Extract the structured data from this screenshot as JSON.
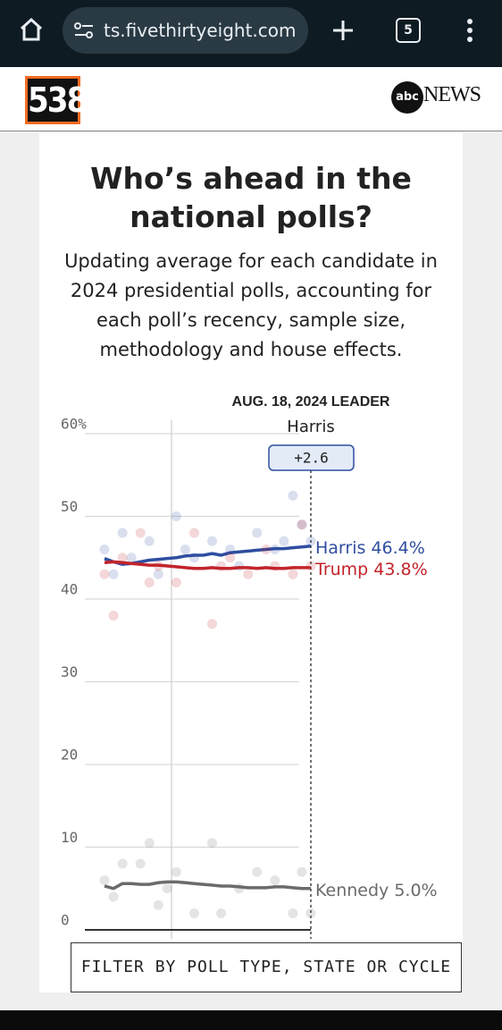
{
  "browser": {
    "url": "ts.fivethirtyeight.com",
    "tab_count": 5
  },
  "site": {
    "logo": "538",
    "partner_badge": "abc",
    "partner_name": "NEWS"
  },
  "chart_data": {
    "type": "line",
    "title": "Who’s ahead in the national polls?",
    "subtitle": "Updating average for each candidate in 2024 presidential polls, accounting for each poll’s recency, sample size, methodology and house effects.",
    "leader_heading": "AUG. 18, 2024 LEADER",
    "leader": "Harris",
    "leader_margin": 2.6,
    "leader_margin_label": "+2.6",
    "ylim": [
      0,
      60
    ],
    "yticks": [
      0,
      10,
      20,
      30,
      40,
      50,
      {
        "value": 60,
        "label": "60%"
      }
    ],
    "grid": true,
    "series": [
      {
        "name": "Harris",
        "color": "#2f4ea0",
        "last_label": "46.4%",
        "values": [
          44.9,
          44.5,
          44.2,
          44.3,
          44.5,
          44.7,
          44.8,
          44.9,
          45.0,
          45.2,
          45.3,
          45.3,
          45.5,
          45.3,
          45.6,
          45.7,
          45.8,
          45.9,
          46.0,
          46.1,
          46.1,
          46.2,
          46.3,
          46.4
        ],
        "polls": {
          "x": [
            0,
            1,
            2,
            3,
            5,
            6,
            8,
            9,
            10,
            12,
            14,
            15,
            17,
            19,
            20,
            21,
            22,
            23
          ],
          "values": [
            46,
            43,
            48,
            45,
            47,
            43,
            50,
            46,
            45,
            47,
            46,
            44,
            48,
            46,
            47,
            52.5,
            49,
            47
          ]
        }
      },
      {
        "name": "Trump",
        "color": "#c2242b",
        "last_label": "43.8%",
        "values": [
          44.4,
          44.5,
          44.4,
          44.3,
          44.2,
          44.1,
          44.1,
          44.0,
          43.9,
          43.8,
          43.7,
          43.7,
          43.8,
          43.7,
          43.7,
          43.8,
          43.8,
          43.7,
          43.8,
          43.7,
          43.7,
          43.8,
          43.8,
          43.8
        ],
        "polls": {
          "x": [
            0,
            1,
            2,
            4,
            5,
            6,
            8,
            10,
            12,
            13,
            14,
            16,
            18,
            19,
            21,
            22,
            23
          ],
          "values": [
            43,
            38,
            45,
            48,
            42,
            44,
            42,
            48,
            37,
            44,
            45,
            43,
            46,
            44,
            43,
            49,
            44
          ]
        }
      },
      {
        "name": "Kennedy",
        "color": "#6b6b6b",
        "last_label": "5.0%",
        "values": [
          5.3,
          5.0,
          5.6,
          5.6,
          5.5,
          5.5,
          5.7,
          5.8,
          5.8,
          5.7,
          5.6,
          5.5,
          5.4,
          5.3,
          5.3,
          5.2,
          5.1,
          5.1,
          5.1,
          5.2,
          5.2,
          5.1,
          5.0,
          5.0
        ],
        "polls": {
          "x": [
            0,
            1,
            2,
            4,
            5,
            6,
            7,
            8,
            10,
            12,
            13,
            15,
            17,
            19,
            21,
            22,
            23
          ],
          "values": [
            6,
            4,
            8,
            8,
            10.5,
            3,
            5,
            7,
            2,
            10.5,
            2,
            5,
            7,
            6,
            2,
            7,
            2
          ]
        }
      }
    ]
  },
  "filter_button": "FILTER BY POLL TYPE, STATE OR CYCLE"
}
